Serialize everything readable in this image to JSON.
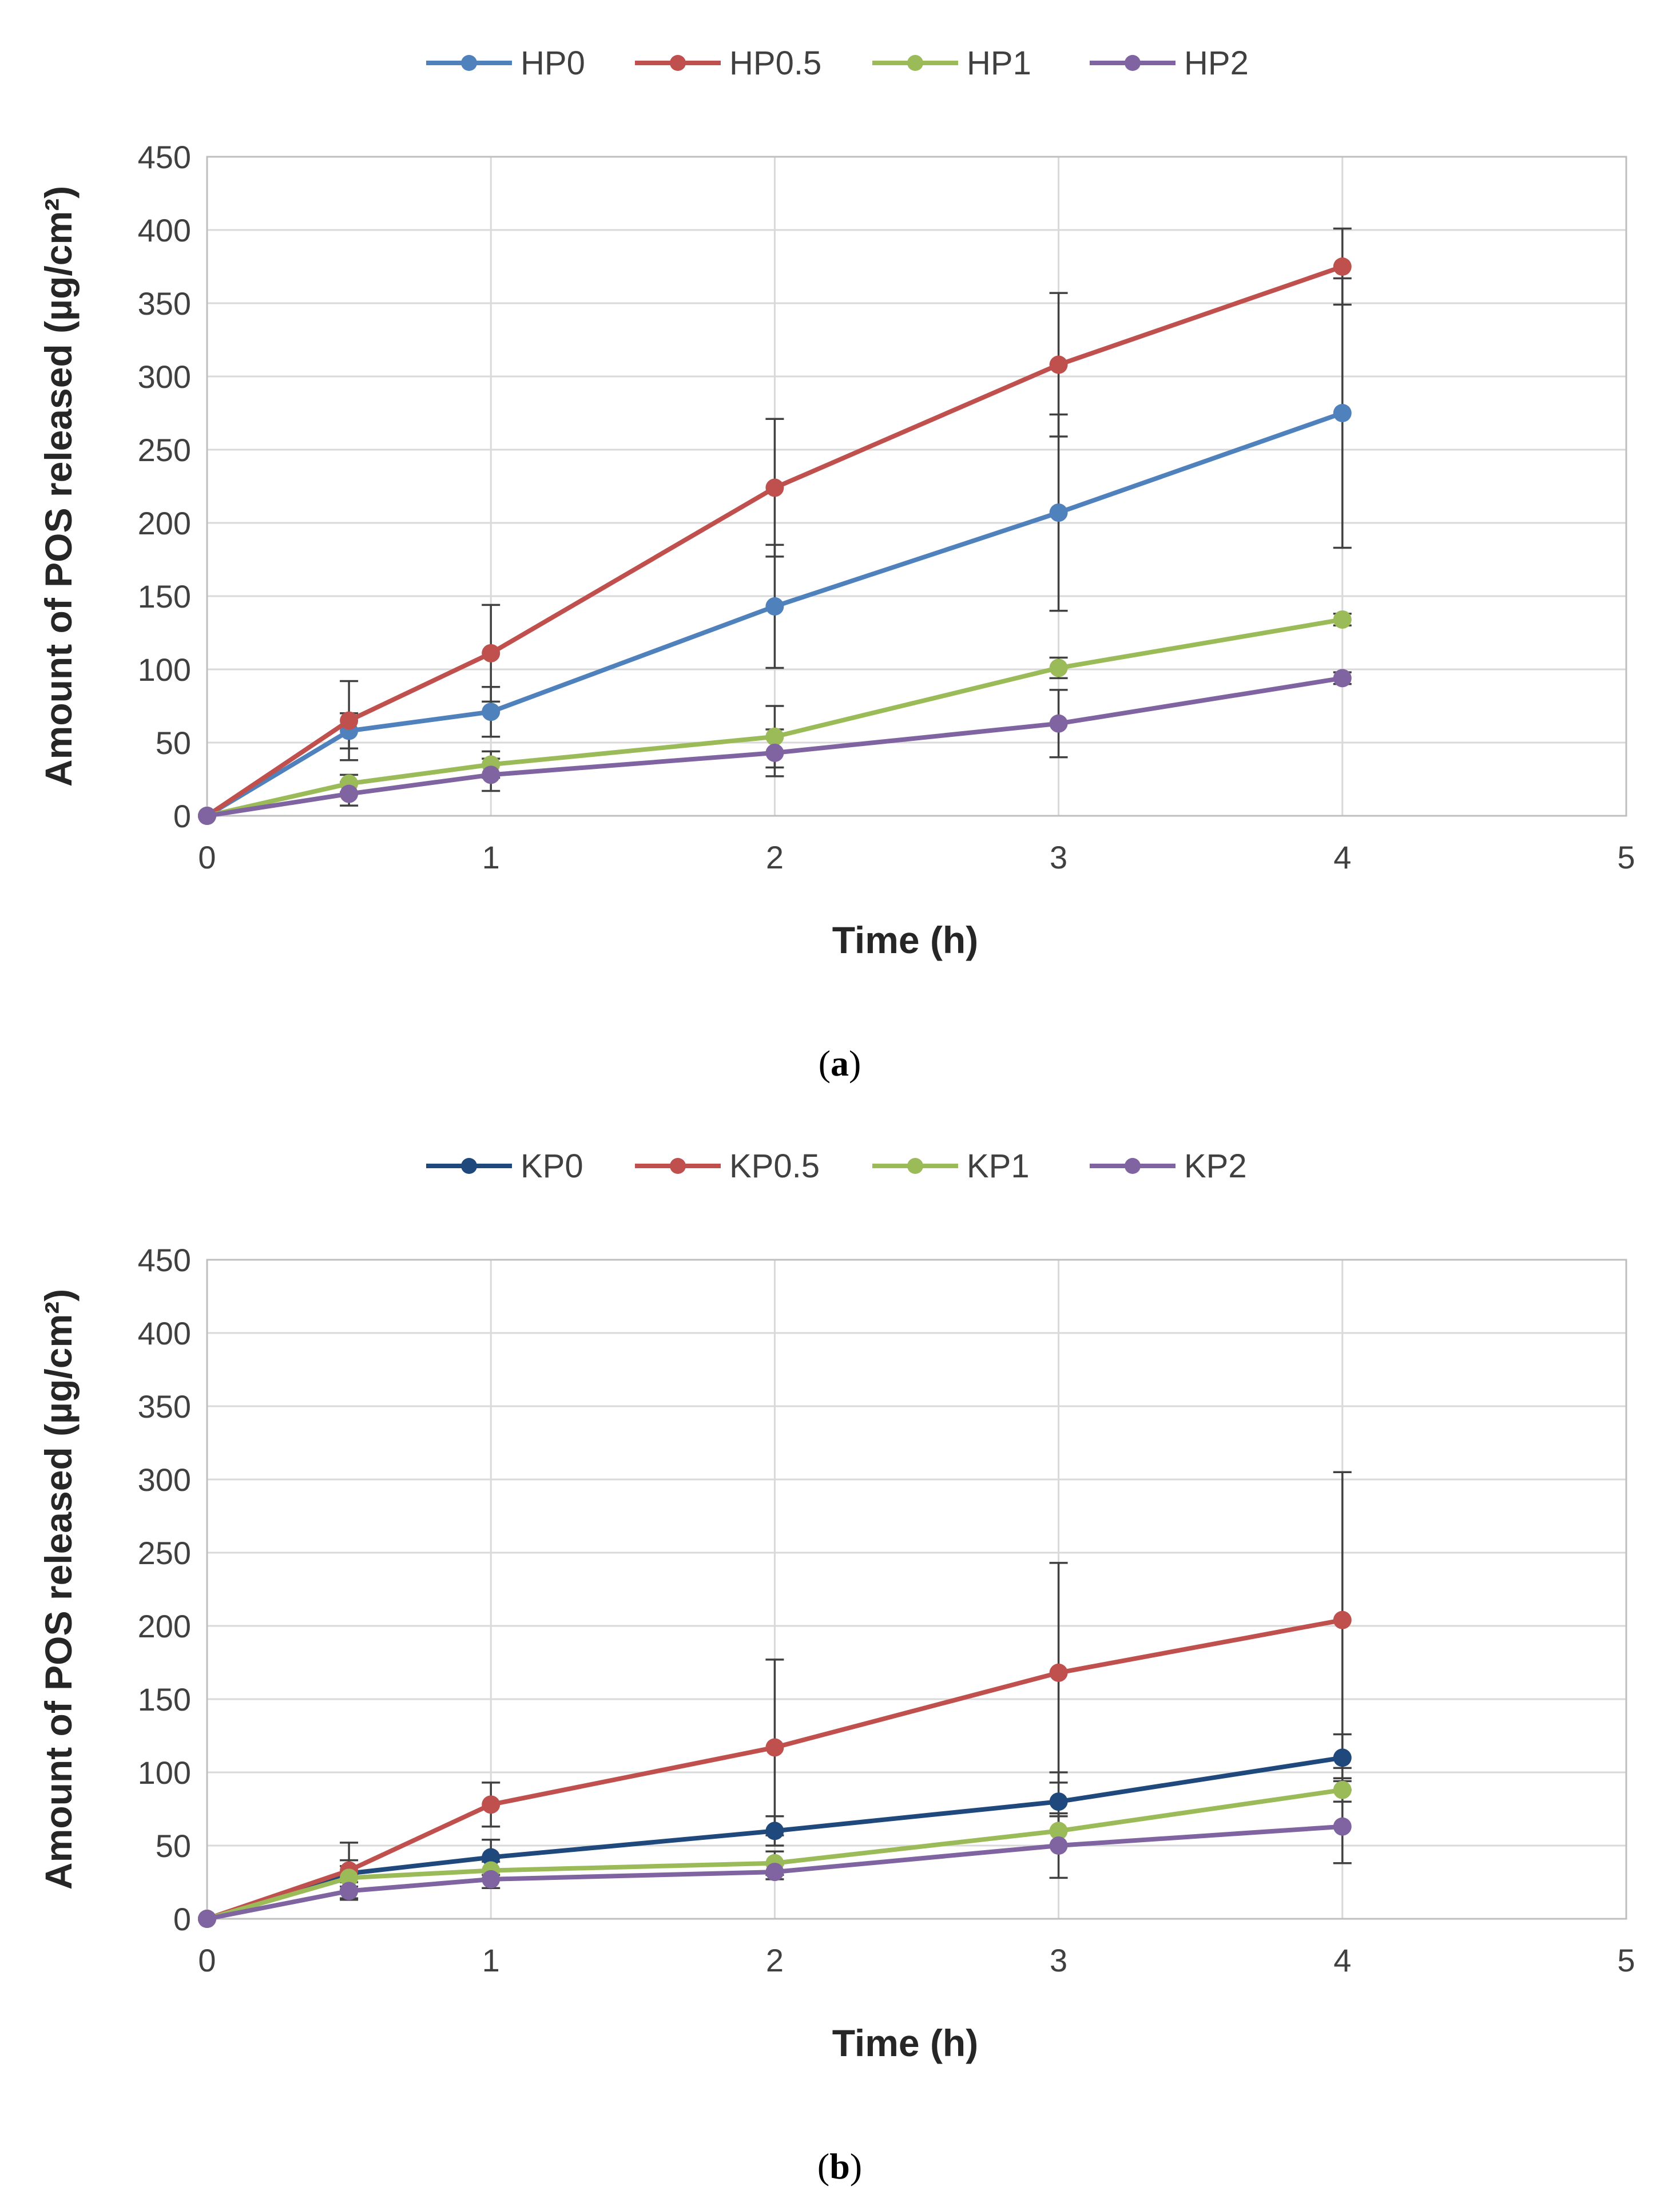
{
  "chart_data": [
    {
      "type": "line",
      "caption_open": "(",
      "caption_letter": "a",
      "caption_close": ")",
      "xlabel": "Time (h)",
      "ylabel": "Amount of POS released (µg/cm²)",
      "xlim": [
        0,
        5
      ],
      "ylim": [
        0,
        450
      ],
      "xticks": [
        0,
        1,
        2,
        3,
        4,
        5
      ],
      "yticks": [
        0,
        50,
        100,
        150,
        200,
        250,
        300,
        350,
        400,
        450
      ],
      "grid": true,
      "legend_position": "top-center",
      "x": [
        0,
        0.5,
        1,
        2,
        3,
        4
      ],
      "series": [
        {
          "name": "HP0",
          "color": "#4f81bd",
          "values": [
            0,
            58,
            71,
            143,
            207,
            275
          ],
          "errors": [
            0,
            12,
            17,
            42,
            67,
            92
          ]
        },
        {
          "name": "HP0.5",
          "color": "#c0504d",
          "values": [
            0,
            65,
            111,
            224,
            308,
            375
          ],
          "errors": [
            0,
            27,
            33,
            47,
            49,
            26
          ]
        },
        {
          "name": "HP1",
          "color": "#9bbb59",
          "values": [
            0,
            22,
            35,
            54,
            101,
            134
          ],
          "errors": [
            0,
            6,
            9,
            21,
            7,
            4
          ]
        },
        {
          "name": "HP2",
          "color": "#8064a2",
          "values": [
            0,
            15,
            28,
            43,
            63,
            94
          ],
          "errors": [
            0,
            8,
            11,
            16,
            23,
            4
          ]
        }
      ]
    },
    {
      "type": "line",
      "caption_open": "(",
      "caption_letter": "b",
      "caption_close": ")",
      "xlabel": "Time (h)",
      "ylabel": "Amount of POS released (µg/cm²)",
      "xlim": [
        0,
        5
      ],
      "ylim": [
        0,
        450
      ],
      "xticks": [
        0,
        1,
        2,
        3,
        4,
        5
      ],
      "yticks": [
        0,
        50,
        100,
        150,
        200,
        250,
        300,
        350,
        400,
        450
      ],
      "grid": true,
      "legend_position": "top-center",
      "x": [
        0,
        0.5,
        1,
        2,
        3,
        4
      ],
      "series": [
        {
          "name": "KP0",
          "color": "#1f497d",
          "values": [
            0,
            31,
            42,
            60,
            80,
            110
          ],
          "errors": [
            0,
            9,
            12,
            10,
            20,
            16
          ]
        },
        {
          "name": "KP0.5",
          "color": "#c0504d",
          "values": [
            0,
            33,
            78,
            117,
            168,
            204
          ],
          "errors": [
            0,
            19,
            15,
            60,
            75,
            101
          ]
        },
        {
          "name": "KP1",
          "color": "#9bbb59",
          "values": [
            0,
            28,
            33,
            38,
            60,
            88
          ],
          "errors": [
            0,
            8,
            6,
            8,
            10,
            8
          ]
        },
        {
          "name": "KP2",
          "color": "#8064a2",
          "values": [
            0,
            19,
            27,
            32,
            50,
            63
          ],
          "errors": [
            0,
            6,
            6,
            5,
            22,
            25
          ]
        }
      ]
    }
  ]
}
